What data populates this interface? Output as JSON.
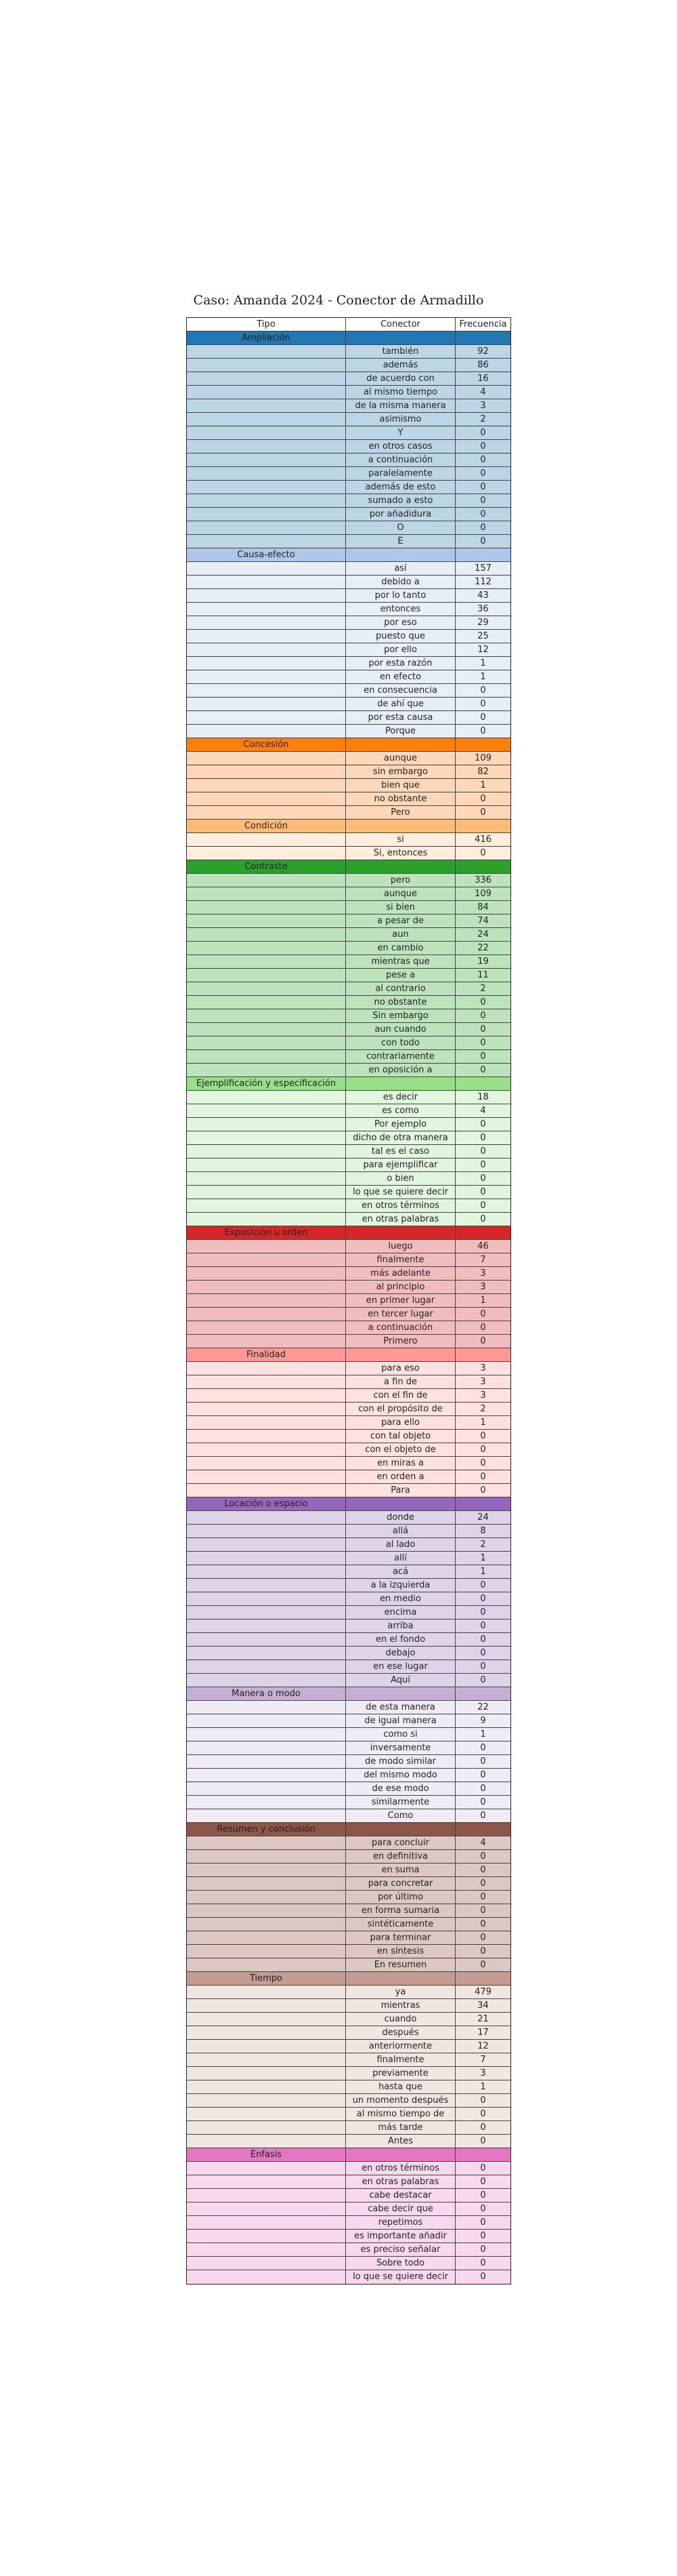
{
  "title": "Caso: Amanda 2024 - Conector de Armadillo",
  "chart_data": {
    "type": "table",
    "columns": [
      "Tipo",
      "Conector",
      "Frecuencia"
    ],
    "groups": [
      {
        "name": "Ampliación",
        "header_color": "#1f77b4",
        "row_color": "#bdd6e6",
        "rows": [
          [
            "también",
            92
          ],
          [
            "además",
            86
          ],
          [
            "de acuerdo con",
            16
          ],
          [
            "al mismo tiempo",
            4
          ],
          [
            "de la misma manera",
            3
          ],
          [
            "asimismo",
            2
          ],
          [
            "Y",
            0
          ],
          [
            "en otros casos",
            0
          ],
          [
            "a continuación",
            0
          ],
          [
            "paralelamente",
            0
          ],
          [
            "además de esto",
            0
          ],
          [
            "sumado a esto",
            0
          ],
          [
            "por añadidura",
            0
          ],
          [
            "O",
            0
          ],
          [
            "E",
            0
          ]
        ]
      },
      {
        "name": "Causa-efecto",
        "header_color": "#aec7e8",
        "row_color": "#e8eef6",
        "rows": [
          [
            "así",
            157
          ],
          [
            "debido a",
            112
          ],
          [
            "por lo tanto",
            43
          ],
          [
            "entonces",
            36
          ],
          [
            "por eso",
            29
          ],
          [
            "puesto que",
            25
          ],
          [
            "por ello",
            12
          ],
          [
            "por esta razón",
            1
          ],
          [
            "en efecto",
            1
          ],
          [
            "en consecuencia",
            0
          ],
          [
            "de ahí que",
            0
          ],
          [
            "por esta causa",
            0
          ],
          [
            "Porque",
            0
          ]
        ]
      },
      {
        "name": "Concesión",
        "header_color": "#ff7f0e",
        "row_color": "#fdd8b8",
        "rows": [
          [
            "aunque",
            109
          ],
          [
            "sin embargo",
            82
          ],
          [
            "bien que",
            1
          ],
          [
            "no obstante",
            0
          ],
          [
            "Pero",
            0
          ]
        ]
      },
      {
        "name": "Condición",
        "header_color": "#ffbb78",
        "row_color": "#ffeedc",
        "rows": [
          [
            "si",
            416
          ],
          [
            "Si, entonces",
            0
          ]
        ]
      },
      {
        "name": "Contraste",
        "header_color": "#2ca02c",
        "row_color": "#bde3bd",
        "rows": [
          [
            "pero",
            336
          ],
          [
            "aunque",
            109
          ],
          [
            "si bien",
            84
          ],
          [
            "a pesar de",
            74
          ],
          [
            "aun",
            24
          ],
          [
            "en cambio",
            22
          ],
          [
            "mientras que",
            19
          ],
          [
            "pese a",
            11
          ],
          [
            "al contrario",
            2
          ],
          [
            "no obstante",
            0
          ],
          [
            "Sin embargo",
            0
          ],
          [
            "aun cuando",
            0
          ],
          [
            "con todo",
            0
          ],
          [
            "contrariamente",
            0
          ],
          [
            "en oposición a",
            0
          ]
        ]
      },
      {
        "name": "Ejemplificación y especificación",
        "header_color": "#98df8a",
        "row_color": "#e2f5de",
        "rows": [
          [
            "es decir",
            18
          ],
          [
            "es como",
            4
          ],
          [
            "Por ejemplo",
            0
          ],
          [
            "dicho de otra manera",
            0
          ],
          [
            "tal es el caso",
            0
          ],
          [
            "para ejemplificar",
            0
          ],
          [
            "o bien",
            0
          ],
          [
            "lo que se quiere decir",
            0
          ],
          [
            "en otros términos",
            0
          ],
          [
            "en otras palabras",
            0
          ]
        ]
      },
      {
        "name": "Exposición u orden",
        "header_color": "#d62728",
        "row_color": "#f0bcbc",
        "rows": [
          [
            "luego",
            46
          ],
          [
            "finalmente",
            7
          ],
          [
            "más adelante",
            3
          ],
          [
            "al principio",
            3
          ],
          [
            "en primer lugar",
            1
          ],
          [
            "en tercer lugar",
            0
          ],
          [
            "a continuación",
            0
          ],
          [
            "Primero",
            0
          ]
        ]
      },
      {
        "name": "Finalidad",
        "header_color": "#ff9896",
        "row_color": "#ffe1e0",
        "rows": [
          [
            "para eso",
            3
          ],
          [
            "a fin de",
            3
          ],
          [
            "con el fin de",
            3
          ],
          [
            "con el propósito de",
            2
          ],
          [
            "para ello",
            1
          ],
          [
            "con tal objeto",
            0
          ],
          [
            "con el objeto de",
            0
          ],
          [
            "en miras a",
            0
          ],
          [
            "en orden a",
            0
          ],
          [
            "Para",
            0
          ]
        ]
      },
      {
        "name": "Locación o espacio",
        "header_color": "#9467bd",
        "row_color": "#dfd3ea",
        "rows": [
          [
            "donde",
            24
          ],
          [
            "allá",
            8
          ],
          [
            "al lado",
            2
          ],
          [
            "allí",
            1
          ],
          [
            "acá",
            1
          ],
          [
            "a la izquierda",
            0
          ],
          [
            "en medio",
            0
          ],
          [
            "encima",
            0
          ],
          [
            "arriba",
            0
          ],
          [
            "en el fondo",
            0
          ],
          [
            "debajo",
            0
          ],
          [
            "en ese lugar",
            0
          ],
          [
            "Aquí",
            0
          ]
        ]
      },
      {
        "name": "Manera o modo",
        "header_color": "#c5b0d5",
        "row_color": "#f0ebf4",
        "rows": [
          [
            "de esta manera",
            22
          ],
          [
            "de igual manera",
            9
          ],
          [
            "como si",
            1
          ],
          [
            "inversamente",
            0
          ],
          [
            "de modo similar",
            0
          ],
          [
            "del mismo modo",
            0
          ],
          [
            "de ese modo",
            0
          ],
          [
            "similarmente",
            0
          ],
          [
            "Como",
            0
          ]
        ]
      },
      {
        "name": "Resumen y conclusión",
        "header_color": "#8c564b",
        "row_color": "#dcc7c3",
        "rows": [
          [
            "para concluir",
            4
          ],
          [
            "en definitiva",
            0
          ],
          [
            "en suma",
            0
          ],
          [
            "para concretar",
            0
          ],
          [
            "por último",
            0
          ],
          [
            "en forma sumaria",
            0
          ],
          [
            "sintéticamente",
            0
          ],
          [
            "para terminar",
            0
          ],
          [
            "en síntesis",
            0
          ],
          [
            "En resumen",
            0
          ]
        ]
      },
      {
        "name": "Tiempo",
        "header_color": "#c49c94",
        "row_color": "#f2e6e3",
        "rows": [
          [
            "ya",
            479
          ],
          [
            "mientras",
            34
          ],
          [
            "cuando",
            21
          ],
          [
            "después",
            17
          ],
          [
            "anteriormente",
            12
          ],
          [
            "finalmente",
            7
          ],
          [
            "previamente",
            3
          ],
          [
            "hasta que",
            1
          ],
          [
            "un momento después",
            0
          ],
          [
            "al mismo tiempo de",
            0
          ],
          [
            "más tarde",
            0
          ],
          [
            "Antes",
            0
          ]
        ]
      },
      {
        "name": "Énfasis",
        "header_color": "#e377c2",
        "row_color": "#f8d8ee",
        "rows": [
          [
            "en otros términos",
            0
          ],
          [
            "en otras palabras",
            0
          ],
          [
            "cabe destacar",
            0
          ],
          [
            "cabe decir que",
            0
          ],
          [
            "repetimos",
            0
          ],
          [
            "es importante añadir",
            0
          ],
          [
            "es preciso señalar",
            0
          ],
          [
            "Sobre todo",
            0
          ],
          [
            "lo que se quiere decir",
            0
          ]
        ]
      }
    ]
  }
}
